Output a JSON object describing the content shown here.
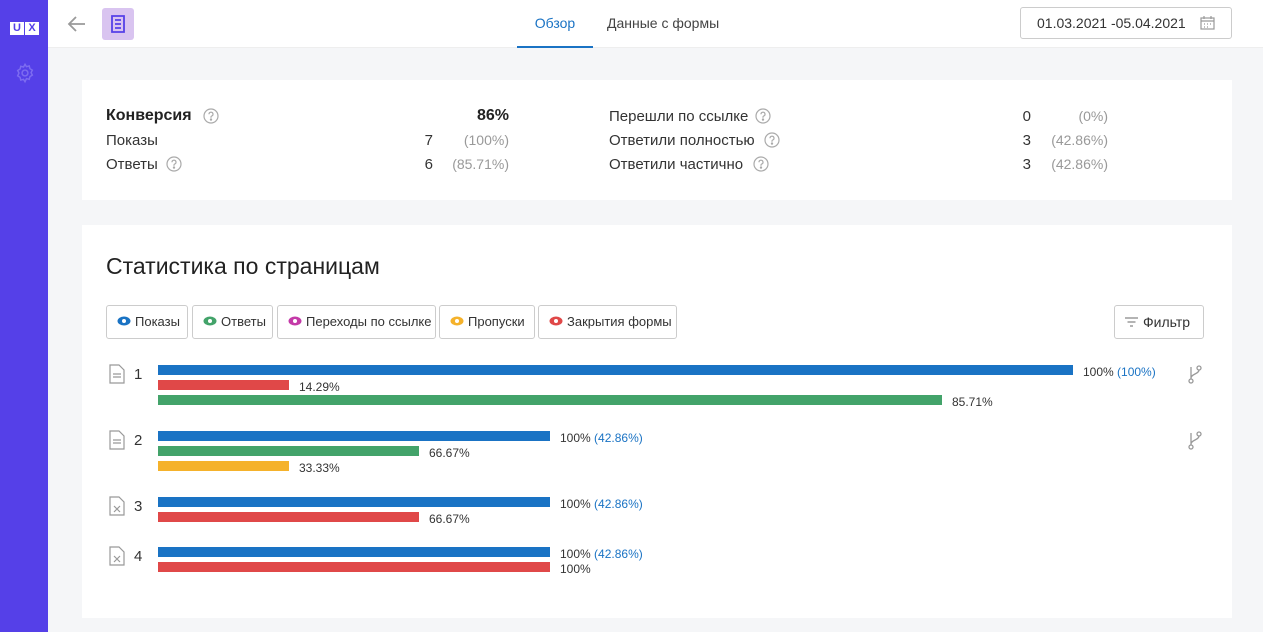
{
  "sidebar": {
    "logo_left": "U",
    "logo_right": "X",
    "gear_icon": "gear-icon"
  },
  "topbar": {
    "tabs": [
      {
        "label": "Обзор",
        "active": true
      },
      {
        "label": "Данные с формы",
        "active": false
      }
    ],
    "date_range": "01.03.2021 -05.04.2021"
  },
  "summary": {
    "conversion": {
      "label": "Конверсия",
      "value": "86%"
    },
    "shows": {
      "label": "Показы",
      "value": "7",
      "pct": "(100%)"
    },
    "answers": {
      "label": "Ответы",
      "value": "6",
      "pct": "(85.71%)"
    },
    "followed": {
      "label": "Перешли по ссылке",
      "value": "0",
      "pct": "(0%)"
    },
    "full": {
      "label": "Ответили полностью",
      "value": "3",
      "pct": "(42.86%)"
    },
    "partial": {
      "label": "Ответили частично",
      "value": "3",
      "pct": "(42.86%)"
    }
  },
  "stats": {
    "title": "Статистика по страницам",
    "legend": [
      {
        "label": "Показы",
        "color": "#1a73c4"
      },
      {
        "label": "Ответы",
        "color": "#43a36a"
      },
      {
        "label": "Переходы по ссылке",
        "color": "#c43aa8"
      },
      {
        "label": "Пропуски",
        "color": "#f5b22b"
      },
      {
        "label": "Закрытия формы",
        "color": "#e04848"
      }
    ],
    "filter_label": "Фильтр",
    "pages": [
      {
        "num": "1",
        "icon": "page-icon",
        "branch": true,
        "bars": [
          {
            "kind": "shows",
            "value": 100,
            "label": "100%",
            "sub": "(100%)"
          },
          {
            "kind": "closes",
            "value": 14.29,
            "label": "14.29%"
          },
          {
            "kind": "answers",
            "value": 85.71,
            "label": "85.71%"
          }
        ]
      },
      {
        "num": "2",
        "icon": "page-icon",
        "branch": true,
        "bars": [
          {
            "kind": "shows",
            "value": 42.86,
            "label": "100%",
            "sub": "(42.86%)"
          },
          {
            "kind": "answers",
            "value": 28.57,
            "label": "66.67%"
          },
          {
            "kind": "skips",
            "value": 14.29,
            "label": "33.33%"
          }
        ]
      },
      {
        "num": "3",
        "icon": "page-close-icon",
        "branch": false,
        "bars": [
          {
            "kind": "shows",
            "value": 42.86,
            "label": "100%",
            "sub": "(42.86%)"
          },
          {
            "kind": "closes",
            "value": 28.57,
            "label": "66.67%"
          }
        ]
      },
      {
        "num": "4",
        "icon": "page-close-icon",
        "branch": false,
        "bars": [
          {
            "kind": "shows",
            "value": 42.86,
            "label": "100%",
            "sub": "(42.86%)"
          },
          {
            "kind": "closes",
            "value": 42.86,
            "label": "100%"
          }
        ]
      }
    ]
  }
}
